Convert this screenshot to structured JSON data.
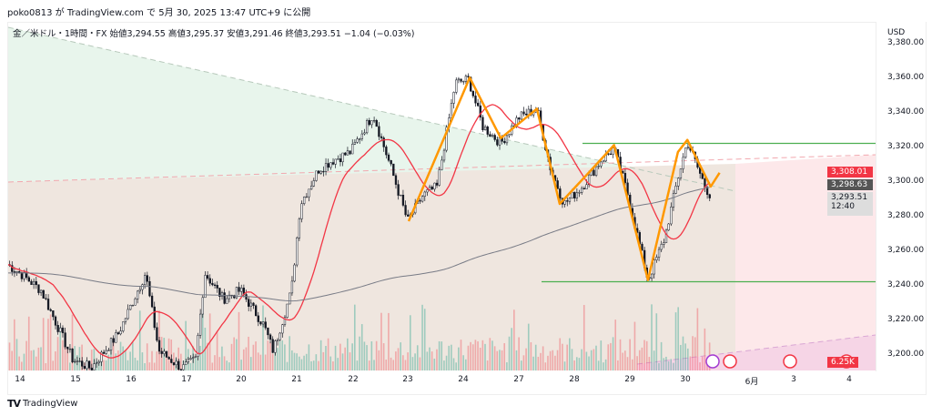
{
  "header": {
    "published": "poko0813 が TradingView.com で 5月 30, 2025 13:47 UTC+9 に公開"
  },
  "legend": {
    "text": "金／米ドル・1時間・FX  始値3,294.55  高値3,295.37  安値3,291.46  終値3,293.51  −1.04 (−0.03%)"
  },
  "axis": {
    "currency": "USD",
    "ticks": [
      "3,380.00",
      "3,360.00",
      "3,340.00",
      "3,320.00",
      "3,300.00",
      "3,280.00",
      "3,260.00",
      "3,240.00",
      "3,220.00",
      "3,200.00"
    ],
    "badges": {
      "red_price": "3,308.01",
      "dark_price": "3,298.63",
      "last_price": "3,293.51",
      "countdown": "12:40",
      "volume": "6.25K"
    }
  },
  "dates": [
    "14",
    "15",
    "16",
    "17",
    "20",
    "21",
    "22",
    "23",
    "24",
    "27",
    "28",
    "29",
    "30",
    "6月",
    "3",
    "4"
  ],
  "footer": {
    "logo": "TradingView"
  },
  "colors": {
    "up": "#089981",
    "down": "#f23645",
    "ma_fast": "#f23645",
    "ma_slow": "#787b86",
    "pattern": "#ff9800",
    "levels": "#4caf50"
  },
  "chart_data": {
    "type": "candlestick",
    "symbol": "XAU/USD",
    "interval": "1h",
    "ylim": [
      3200,
      3390
    ],
    "levels": [
      3325,
      3245
    ],
    "price_path": [
      [
        -0.23,
        3255
      ],
      [
        0,
        3250
      ],
      [
        0.38,
        3240
      ],
      [
        0.95,
        3200
      ],
      [
        1.28,
        3195
      ],
      [
        1.77,
        3215
      ],
      [
        2.26,
        3250
      ],
      [
        2.5,
        3205
      ],
      [
        2.92,
        3195
      ],
      [
        3.16,
        3200
      ],
      [
        3.33,
        3250
      ],
      [
        3.66,
        3235
      ],
      [
        3.97,
        3240
      ],
      [
        4.39,
        3220
      ],
      [
        4.56,
        3205
      ],
      [
        4.89,
        3240
      ],
      [
        5.05,
        3290
      ],
      [
        5.38,
        3310
      ],
      [
        5.62,
        3315
      ],
      [
        5.95,
        3320
      ],
      [
        6.36,
        3342
      ],
      [
        6.69,
        3310
      ],
      [
        6.98,
        3280
      ],
      [
        7.26,
        3295
      ],
      [
        7.51,
        3300
      ],
      [
        7.84,
        3360
      ],
      [
        8.08,
        3362
      ],
      [
        8.33,
        3335
      ],
      [
        8.66,
        3325
      ],
      [
        8.98,
        3340
      ],
      [
        9.31,
        3345
      ],
      [
        9.56,
        3310
      ],
      [
        9.8,
        3290
      ],
      [
        10.13,
        3300
      ],
      [
        10.46,
        3315
      ],
      [
        10.7,
        3322
      ],
      [
        10.95,
        3295
      ],
      [
        11.31,
        3246
      ],
      [
        11.61,
        3270
      ],
      [
        11.85,
        3305
      ],
      [
        12.02,
        3326
      ],
      [
        12.34,
        3300
      ],
      [
        12.46,
        3293.5
      ]
    ],
    "pattern": [
      [
        7.0,
        3280
      ],
      [
        8.1,
        3363
      ],
      [
        8.66,
        3328
      ],
      [
        9.31,
        3345
      ],
      [
        9.72,
        3290
      ],
      [
        10.3,
        3310
      ],
      [
        10.7,
        3324
      ],
      [
        11.31,
        3246
      ],
      [
        11.85,
        3320
      ],
      [
        12.02,
        3327
      ],
      [
        12.44,
        3300
      ],
      [
        12.6,
        3308
      ]
    ]
  }
}
